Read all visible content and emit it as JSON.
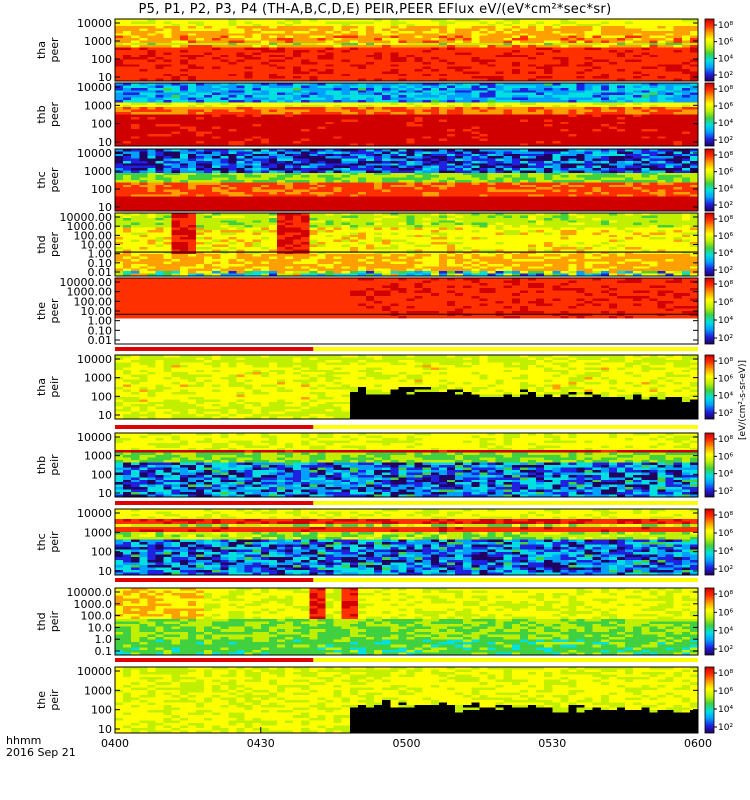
{
  "chart_data": {
    "type": "heatmap",
    "title": "P5, P1, P2, P3, P4 (TH-A,B,C,D,E) PEIR,PEER EFlux eV/(eV*cm²*sec*sr)",
    "x_ticks": [
      "0400",
      "0430",
      "0500",
      "0530",
      "0600"
    ],
    "x_range_minutes": [
      0,
      120
    ],
    "x_footer": {
      "line1": "hhmm",
      "line2": "2016 Sep 21"
    },
    "colorbar_unit_label": "[eV/(cm²-s-sr-eV)]",
    "colorbar_scale_ticks": [
      "10⁸",
      "10⁶",
      "10⁴",
      "10²"
    ],
    "colormap": [
      "#200060",
      "#2020e0",
      "#00a0ff",
      "#00e0e0",
      "#40d040",
      "#c0f000",
      "#ffff00",
      "#ffa000",
      "#ff3000",
      "#d00000"
    ],
    "panels": [
      {
        "name": "tha peer",
        "line1": "tha",
        "line2": "peer",
        "y_ticks": [
          "10000",
          "1000",
          "100",
          "10"
        ],
        "kind": "peer_red",
        "has_bar": false
      },
      {
        "name": "thb peer",
        "line1": "thb",
        "line2": "peer",
        "y_ticks": [
          "10000",
          "1000",
          "100",
          "10"
        ],
        "kind": "peer_cyan",
        "has_bar": false
      },
      {
        "name": "thc peer",
        "line1": "thc",
        "line2": "peer",
        "y_ticks": [
          "10000",
          "1000",
          "100",
          "10"
        ],
        "kind": "peer_blue",
        "has_bar": false
      },
      {
        "name": "thd peer",
        "line1": "thd",
        "line2": "peer",
        "y_ticks": [
          "10000.00",
          "1000.00",
          "100.00",
          "10.00",
          "1.00",
          "0.10",
          "0.01"
        ],
        "kind": "peer_thd",
        "has_bar": false
      },
      {
        "name": "the peer",
        "line1": "the",
        "line2": "peer",
        "y_ticks": [
          "10000.00",
          "1000.00",
          "100.00",
          "10.00",
          "1.00",
          "0.10",
          "0.01"
        ],
        "kind": "peer_the",
        "has_bar": false
      },
      {
        "name": "tha peir",
        "line1": "tha",
        "line2": "peir",
        "y_ticks": [
          "10000",
          "1000",
          "100",
          "10"
        ],
        "kind": "peir_a",
        "has_bar": true
      },
      {
        "name": "thb peir",
        "line1": "thb",
        "line2": "peir",
        "y_ticks": [
          "10000",
          "1000",
          "100",
          "10"
        ],
        "kind": "peir_b",
        "has_bar": true
      },
      {
        "name": "thc peir",
        "line1": "thc",
        "line2": "peir",
        "y_ticks": [
          "10000",
          "1000",
          "100",
          "10"
        ],
        "kind": "peir_c",
        "has_bar": true
      },
      {
        "name": "thd peir",
        "line1": "thd",
        "line2": "peir",
        "y_ticks": [
          "10000.0",
          "1000.0",
          "100.0",
          "10.0",
          "1.0",
          "0.1"
        ],
        "kind": "peir_d",
        "has_bar": true
      },
      {
        "name": "the peir",
        "line1": "the",
        "line2": "peir",
        "y_ticks": [
          "10000",
          "1000",
          "100",
          "10"
        ],
        "kind": "peir_e",
        "has_bar": true
      }
    ]
  }
}
